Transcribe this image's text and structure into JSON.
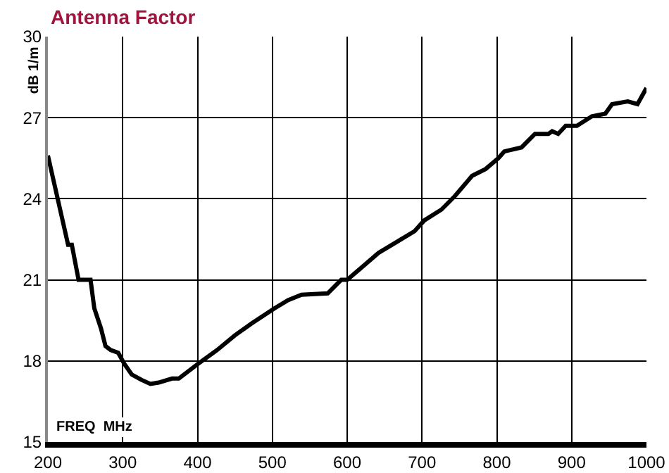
{
  "chart_data": {
    "type": "line",
    "title": "Antenna Factor",
    "xlabel": "FREQ  MHz",
    "ylabel": "dB 1/m",
    "x": [
      200,
      209,
      218,
      227,
      232,
      241,
      248,
      257,
      262,
      271,
      277,
      284,
      294,
      302,
      312,
      325,
      337,
      348,
      366,
      375,
      401,
      426,
      450,
      473,
      503,
      521,
      539,
      574,
      592,
      600,
      642,
      666,
      690,
      703,
      726,
      744,
      767,
      785,
      802,
      810,
      833,
      851,
      869,
      874,
      882,
      892,
      907,
      927,
      945,
      954,
      975,
      988,
      1000
    ],
    "series": [
      {
        "color": "#000000",
        "values": [
          25.6,
          24.5,
          23.4,
          22.3,
          22.3,
          21.0,
          21.0,
          21.0,
          19.95,
          19.2,
          18.55,
          18.4,
          18.3,
          17.9,
          17.5,
          17.3,
          17.15,
          17.2,
          17.35,
          17.35,
          17.9,
          18.4,
          18.95,
          19.4,
          19.95,
          20.25,
          20.45,
          20.5,
          21.0,
          21.0,
          22.0,
          22.4,
          22.8,
          23.2,
          23.6,
          24.1,
          24.85,
          25.1,
          25.5,
          25.75,
          25.9,
          26.4,
          26.4,
          26.5,
          26.4,
          26.7,
          26.7,
          27.05,
          27.15,
          27.5,
          27.6,
          27.5,
          28.1
        ]
      }
    ],
    "xlim": [
      200,
      1000
    ],
    "xticks": [
      200,
      300,
      400,
      500,
      600,
      700,
      800,
      900,
      1000
    ],
    "ylim": [
      15,
      30
    ],
    "yticks": [
      15,
      18,
      21,
      24,
      27,
      30
    ],
    "grid": true,
    "marker": "none",
    "line_style": "solid"
  }
}
